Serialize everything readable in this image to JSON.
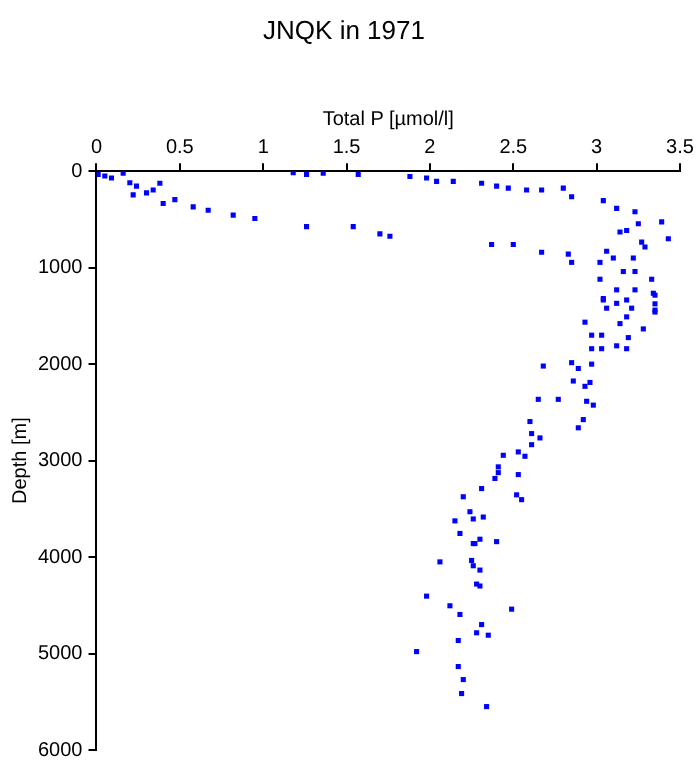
{
  "chart_data": {
    "type": "scatter",
    "title": "JNQK in 1971",
    "xlabel": "Total P [µmol/l]",
    "ylabel": "Depth [m]",
    "xlim": [
      0,
      3.5
    ],
    "xticks": [
      0,
      0.5,
      1,
      1.5,
      2,
      2.5,
      3,
      3.5
    ],
    "ylim": [
      6000,
      0
    ],
    "yticks": [
      0,
      1000,
      2000,
      3000,
      4000,
      5000,
      6000
    ],
    "grid": false,
    "legend": false,
    "marker": "square",
    "series": [
      {
        "color": "#0000ff",
        "x": [
          0.01,
          0.05,
          0.09,
          0.16,
          0.2,
          0.22,
          0.24,
          0.3,
          0.34,
          0.38,
          0.4,
          0.47,
          0.58,
          0.67,
          0.82,
          0.95,
          1.18,
          1.26,
          1.36,
          1.26,
          1.54,
          1.57,
          1.7,
          1.76,
          1.88,
          1.98,
          2.04,
          2.14,
          2.31,
          2.4,
          2.47,
          2.58,
          2.67,
          2.8,
          2.85,
          2.37,
          2.5,
          2.67,
          2.83,
          2.85,
          3.04,
          3.12,
          3.23,
          3.25,
          3.14,
          3.18,
          3.39,
          3.43,
          3.27,
          3.29,
          3.06,
          3.1,
          3.02,
          3.22,
          3.23,
          3.16,
          3.33,
          3.12,
          3.23,
          3.34,
          3.04,
          3.06,
          3.21,
          3.35,
          3.02,
          3.04,
          3.12,
          3.18,
          3.35,
          3.35,
          3.35,
          3.18,
          2.93,
          3.14,
          3.28,
          2.97,
          3.03,
          3.19,
          2.97,
          3.03,
          3.12,
          3.18,
          2.68,
          2.85,
          2.89,
          2.97,
          2.86,
          2.93,
          2.96,
          2.65,
          2.77,
          2.94,
          2.98,
          2.92,
          2.89,
          2.6,
          2.61,
          2.66,
          2.61,
          2.44,
          2.53,
          2.57,
          2.41,
          2.41,
          2.39,
          2.53,
          2.31,
          2.2,
          2.52,
          2.55,
          2.24,
          2.32,
          2.26,
          2.15,
          2.18,
          2.3,
          2.27,
          2.4,
          2.26,
          2.06,
          2.25,
          2.26,
          2.3,
          2.28,
          2.3,
          1.98,
          2.12,
          2.18,
          2.49,
          2.31,
          2.28,
          2.35,
          2.17,
          1.92,
          2.17,
          2.2,
          2.19,
          2.34
        ],
        "values": [
          35,
          50,
          70,
          20,
          120,
          245,
          155,
          225,
          195,
          125,
          335,
          295,
          370,
          405,
          455,
          490,
          15,
          35,
          20,
          575,
          575,
          35,
          650,
          675,
          55,
          70,
          105,
          105,
          125,
          155,
          175,
          195,
          195,
          175,
          265,
          760,
          760,
          840,
          860,
          945,
          305,
          385,
          420,
          545,
          630,
          615,
          525,
          700,
          735,
          785,
          830,
          900,
          945,
          900,
          1040,
          1040,
          1120,
          1230,
          1230,
          1265,
          1335,
          1420,
          1420,
          1440,
          1120,
          1320,
          1370,
          1335,
          1285,
          1375,
          1460,
          1510,
          1565,
          1580,
          1635,
          1700,
          1700,
          1725,
          1840,
          1840,
          1810,
          1840,
          2020,
          1985,
          2045,
          2000,
          2175,
          2230,
          2190,
          2365,
          2365,
          2385,
          2425,
          2575,
          2660,
          2595,
          2720,
          2765,
          2835,
          2945,
          2910,
          2955,
          3065,
          3125,
          3185,
          3145,
          3290,
          3375,
          3355,
          3405,
          3530,
          3585,
          3605,
          3625,
          3755,
          3815,
          3860,
          3840,
          3860,
          4050,
          4035,
          4090,
          4135,
          4280,
          4300,
          4405,
          4505,
          4595,
          4540,
          4700,
          4785,
          4810,
          4865,
          4980,
          5135,
          5270,
          5415,
          5550
        ]
      }
    ]
  }
}
